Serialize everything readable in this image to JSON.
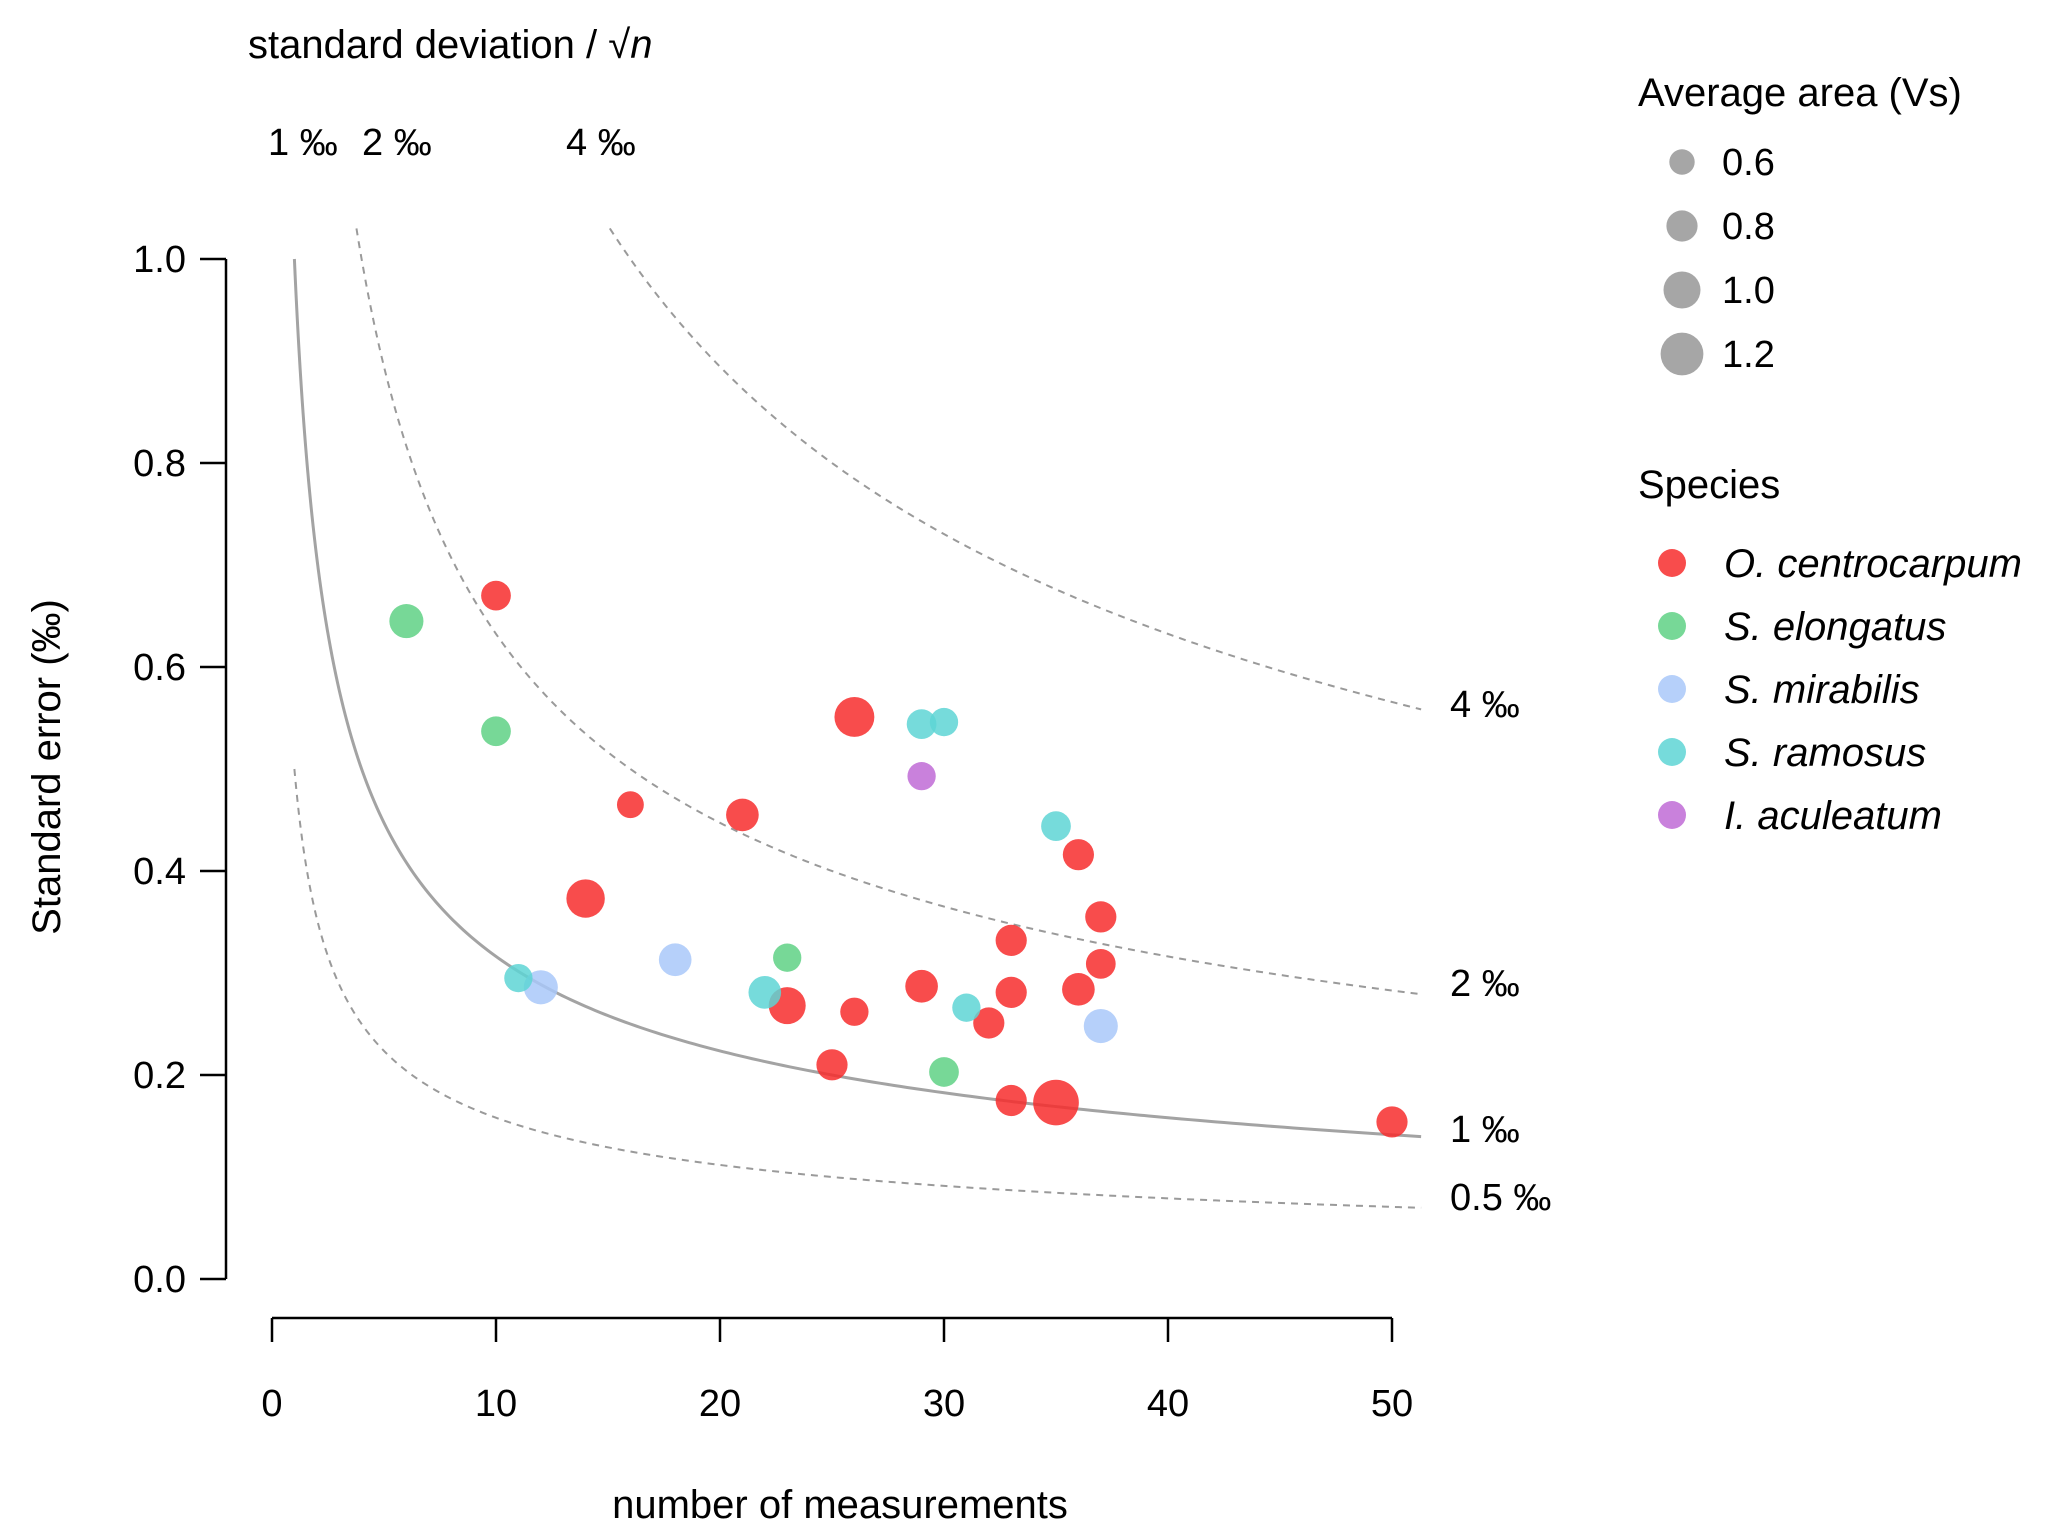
{
  "chart_data": {
    "type": "scatter",
    "title": "",
    "xlabel": "number of measurements",
    "ylabel": "Standard error (‰)",
    "xlim": [
      0,
      50
    ],
    "ylim": [
      0.0,
      1.0
    ],
    "x_ticks": [
      "0",
      "10",
      "20",
      "30",
      "40",
      "50"
    ],
    "y_ticks": [
      "0.0",
      "0.2",
      "0.4",
      "0.6",
      "0.8",
      "1.0"
    ],
    "grid": false,
    "top_axis": {
      "title_prefix": "standard deviation / √",
      "title_var": "n",
      "labels": [
        "1 ‰",
        "2 ‰",
        "4 ‰"
      ]
    },
    "reference_curves": [
      {
        "sd": 0.5,
        "label": "0.5 ‰",
        "style": "dashed"
      },
      {
        "sd": 1,
        "label": "1 ‰",
        "style": "solid"
      },
      {
        "sd": 2,
        "label": "2 ‰",
        "style": "dashed"
      },
      {
        "sd": 4,
        "label": "4 ‰",
        "style": "dashed"
      }
    ],
    "size_legend": {
      "title": "Average area (Vs)",
      "entries": [
        {
          "label": "0.6",
          "value": 0.6
        },
        {
          "label": "0.8",
          "value": 0.8
        },
        {
          "label": "1.0",
          "value": 1.0
        },
        {
          "label": "1.2",
          "value": 1.2
        }
      ]
    },
    "color_legend": {
      "title": "Species",
      "placement": "right"
    },
    "series": [
      {
        "name": "O. centrocarpum",
        "color": "#f72d2d",
        "points": [
          {
            "x": 10,
            "y": 0.67,
            "area": 0.75
          },
          {
            "x": 14,
            "y": 0.373,
            "area": 1.05
          },
          {
            "x": 16,
            "y": 0.465,
            "area": 0.65
          },
          {
            "x": 21,
            "y": 0.455,
            "area": 0.85
          },
          {
            "x": 23,
            "y": 0.268,
            "area": 1.0
          },
          {
            "x": 25,
            "y": 0.21,
            "area": 0.8
          },
          {
            "x": 26,
            "y": 0.551,
            "area": 1.1
          },
          {
            "x": 26,
            "y": 0.262,
            "area": 0.7
          },
          {
            "x": 29,
            "y": 0.287,
            "area": 0.85
          },
          {
            "x": 32,
            "y": 0.251,
            "area": 0.8
          },
          {
            "x": 33,
            "y": 0.332,
            "area": 0.8
          },
          {
            "x": 33,
            "y": 0.281,
            "area": 0.8
          },
          {
            "x": 33,
            "y": 0.175,
            "area": 0.8
          },
          {
            "x": 35,
            "y": 0.173,
            "area": 1.3
          },
          {
            "x": 36,
            "y": 0.416,
            "area": 0.8
          },
          {
            "x": 36,
            "y": 0.284,
            "area": 0.85
          },
          {
            "x": 37,
            "y": 0.355,
            "area": 0.8
          },
          {
            "x": 37,
            "y": 0.309,
            "area": 0.75
          },
          {
            "x": 50,
            "y": 0.154,
            "area": 0.8
          }
        ]
      },
      {
        "name": "S. elongatus",
        "color": "#5fd185",
        "points": [
          {
            "x": 6,
            "y": 0.645,
            "area": 0.9
          },
          {
            "x": 10,
            "y": 0.537,
            "area": 0.75
          },
          {
            "x": 23,
            "y": 0.315,
            "area": 0.7
          },
          {
            "x": 30,
            "y": 0.203,
            "area": 0.75
          }
        ]
      },
      {
        "name": "S. mirabilis",
        "color": "#a9c8f9",
        "points": [
          {
            "x": 12,
            "y": 0.286,
            "area": 0.9
          },
          {
            "x": 18,
            "y": 0.313,
            "area": 0.85
          },
          {
            "x": 37,
            "y": 0.248,
            "area": 0.9
          }
        ]
      },
      {
        "name": "S. ramosus",
        "color": "#5ed5d5",
        "points": [
          {
            "x": 11,
            "y": 0.295,
            "area": 0.7
          },
          {
            "x": 22,
            "y": 0.281,
            "area": 0.85
          },
          {
            "x": 29,
            "y": 0.544,
            "area": 0.75
          },
          {
            "x": 30,
            "y": 0.546,
            "area": 0.7
          },
          {
            "x": 31,
            "y": 0.266,
            "area": 0.7
          },
          {
            "x": 35,
            "y": 0.444,
            "area": 0.75
          }
        ]
      },
      {
        "name": "I. aculeatum",
        "color": "#c06bd6",
        "points": [
          {
            "x": 29,
            "y": 0.493,
            "area": 0.7
          }
        ]
      }
    ]
  }
}
